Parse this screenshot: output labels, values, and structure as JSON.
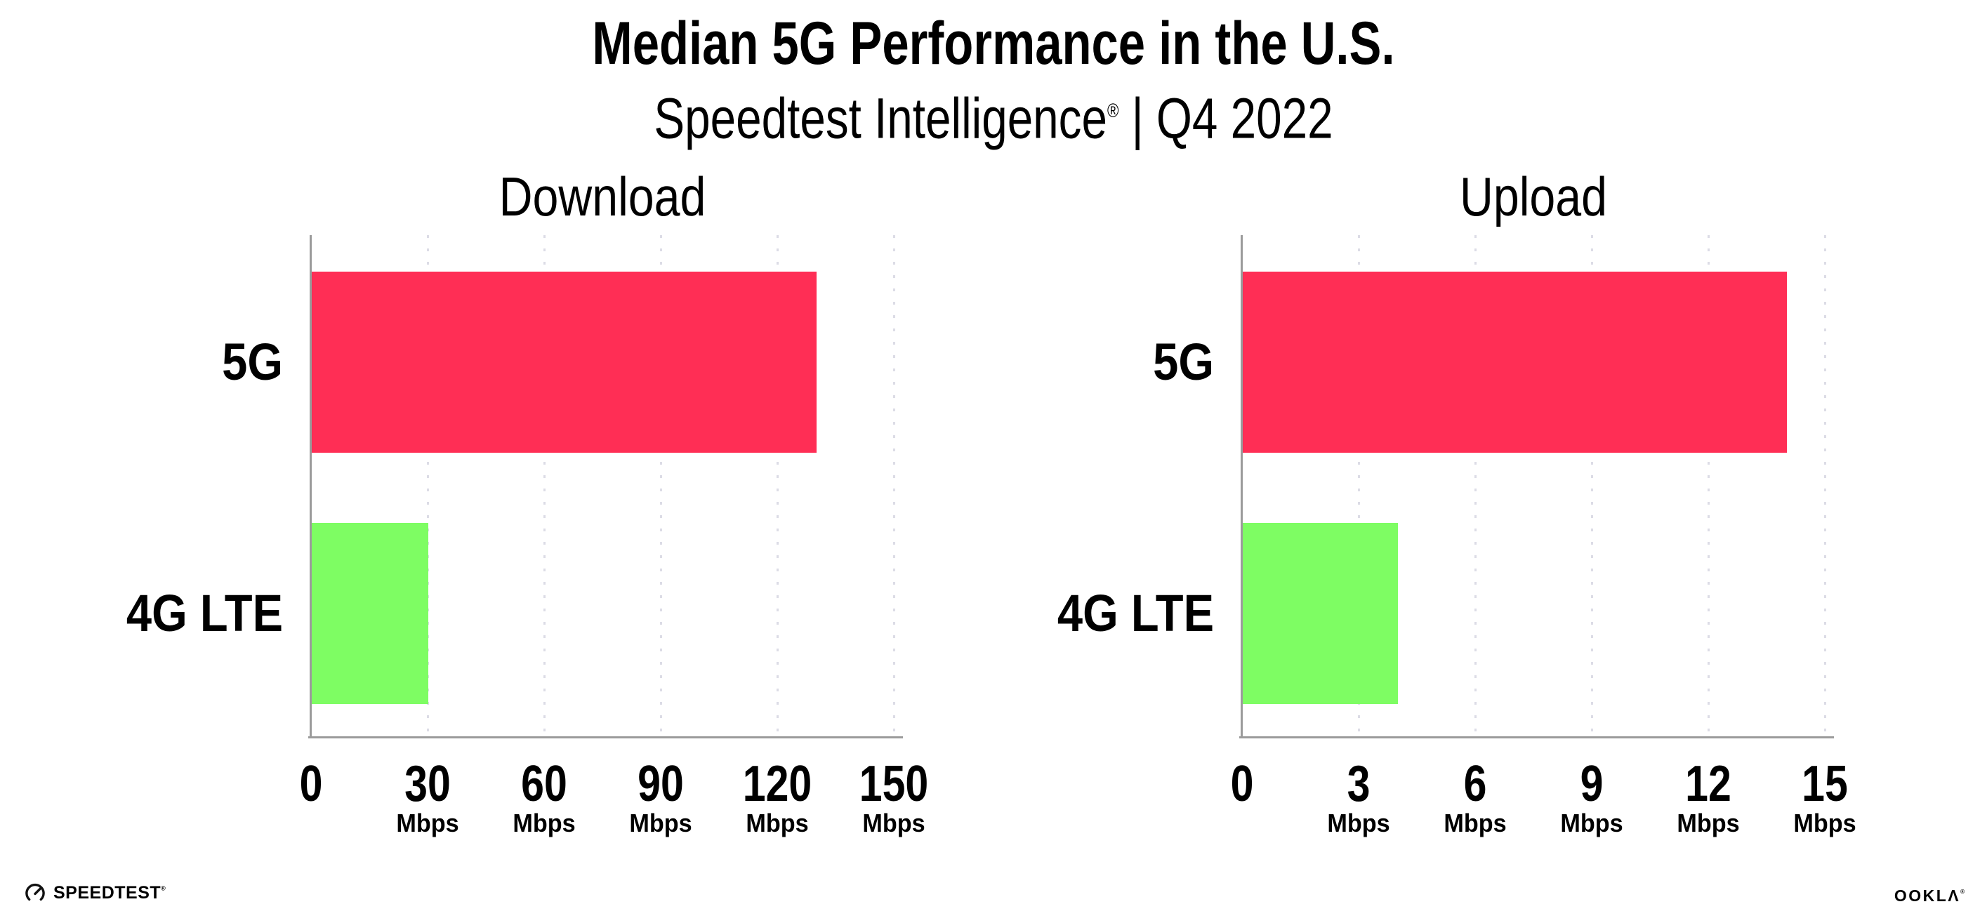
{
  "header": {
    "title": "Median 5G Performance in the U.S.",
    "subtitle_brand": "Speedtest Intelligence",
    "subtitle_reg": "®",
    "subtitle_rest": " | Q4 2022"
  },
  "chart_data": [
    {
      "type": "bar",
      "orientation": "horizontal",
      "title": "Download",
      "categories": [
        "5G",
        "4G LTE"
      ],
      "values": [
        130,
        30
      ],
      "unit": "Mbps",
      "xlim": [
        0,
        150
      ],
      "xticks": [
        0,
        30,
        60,
        90,
        120,
        150
      ],
      "bar_colors": [
        "#FF2E55",
        "#7EFD63"
      ],
      "grid": "dotted-vertical",
      "legend": "none"
    },
    {
      "type": "bar",
      "orientation": "horizontal",
      "title": "Upload",
      "categories": [
        "5G",
        "4G LTE"
      ],
      "values": [
        14,
        4
      ],
      "unit": "Mbps",
      "xlim": [
        0,
        15
      ],
      "xticks": [
        0,
        3,
        6,
        9,
        12,
        15
      ],
      "bar_colors": [
        "#FF2E55",
        "#7EFD63"
      ],
      "grid": "dotted-vertical",
      "legend": "none"
    }
  ],
  "colors": {
    "bar_5g": "#FF2E55",
    "bar_4g_lte": "#7EFD63",
    "axis_line": "#9b9b9b",
    "gridline": "#dcdce6",
    "text": "#000000"
  },
  "footer": {
    "speedtest_label": "SPEEDTEST",
    "speedtest_reg": "®",
    "ookla_label": "OOKLΛ",
    "ookla_reg": "®"
  }
}
